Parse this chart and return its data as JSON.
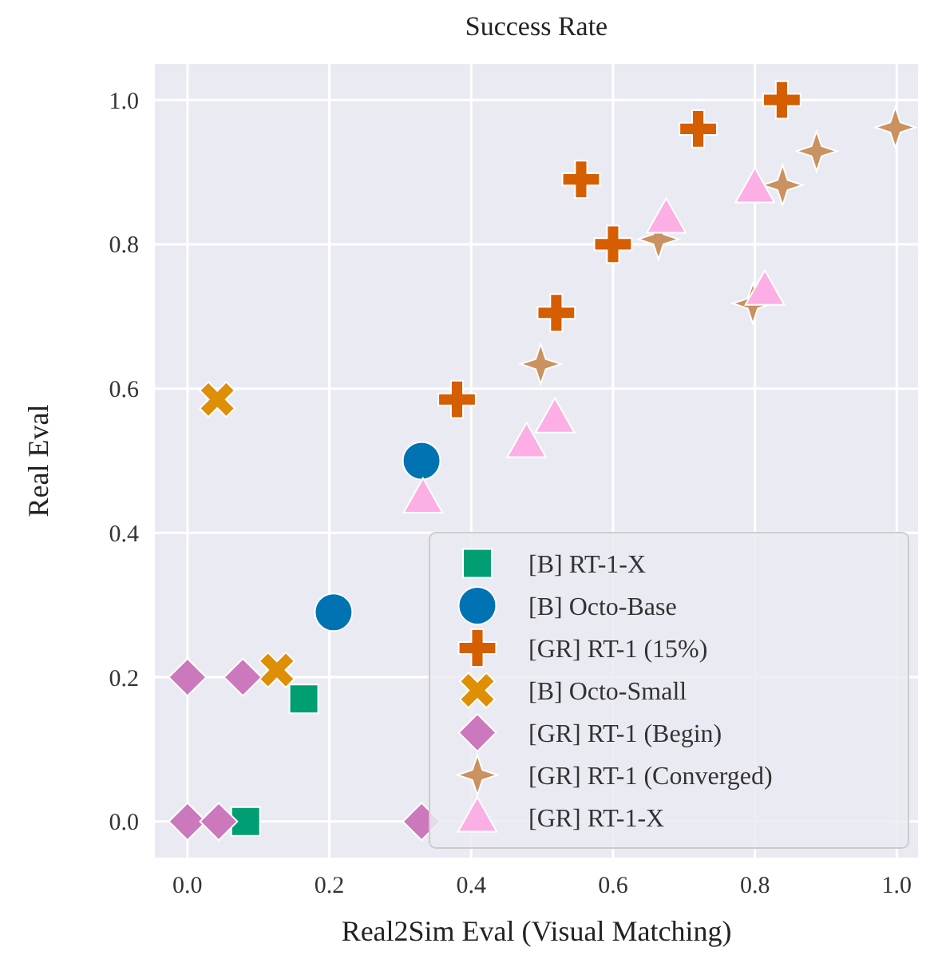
{
  "chart_data": {
    "type": "scatter",
    "title": "Success Rate",
    "xlabel": "Real2Sim Eval (Visual Matching)",
    "ylabel": "Real Eval",
    "xlim": [
      -0.046,
      1.03
    ],
    "ylim": [
      -0.05,
      1.05
    ],
    "xticks": [
      {
        "value": 0,
        "label": "0.0"
      },
      0.2,
      0.4,
      0.6,
      0.8,
      {
        "value": 1,
        "label": "1.0"
      }
    ],
    "yticks": [
      {
        "value": 0,
        "label": "0.0"
      },
      0.2,
      0.4,
      0.6,
      0.8,
      {
        "value": 1,
        "label": "1.0"
      }
    ],
    "grid": true,
    "legend": "bottom right",
    "series": [
      {
        "name": "[B] RT-1-X",
        "color": "#029e73",
        "marker": "square",
        "x": [
          0.082,
          0.164
        ],
        "values": [
          0.0,
          0.17
        ]
      },
      {
        "name": "[B] Octo-Base",
        "color": "#0173b2",
        "marker": "circle",
        "x": [
          0.33,
          0.206
        ],
        "values": [
          0.5,
          0.29
        ]
      },
      {
        "name": "[GR] RT-1 (15%)",
        "color": "#d55e00",
        "marker": "plus",
        "x": [
          0.38,
          0.52,
          0.6,
          0.555,
          0.72,
          0.838
        ],
        "values": [
          0.585,
          0.705,
          0.8,
          0.89,
          0.96,
          1.0
        ]
      },
      {
        "name": "[B] Octo-Small",
        "color": "#de8f05",
        "marker": "cross",
        "x": [
          0.042,
          0.126
        ],
        "values": [
          0.585,
          0.21
        ]
      },
      {
        "name": "[GR] RT-1 (Begin)",
        "color": "#cc78bc",
        "marker": "diamond",
        "x": [
          0.0,
          0.078,
          0.0,
          0.044,
          0.33
        ],
        "values": [
          0.2,
          0.2,
          0.0,
          0.0,
          0.0
        ]
      },
      {
        "name": "[GR] RT-1 (Converged)",
        "color": "#ca9161",
        "marker": "star",
        "x": [
          0.498,
          0.664,
          0.797,
          0.839,
          0.887,
          0.998
        ],
        "values": [
          0.634,
          0.807,
          0.718,
          0.882,
          0.929,
          0.962
        ]
      },
      {
        "name": "[GR] RT-1-X",
        "color": "#fbafe4",
        "marker": "triangle",
        "x": [
          0.675,
          0.8,
          0.814,
          0.518,
          0.478,
          0.332
        ],
        "values": [
          0.836,
          0.878,
          0.736,
          0.559,
          0.525,
          0.448
        ]
      }
    ]
  }
}
